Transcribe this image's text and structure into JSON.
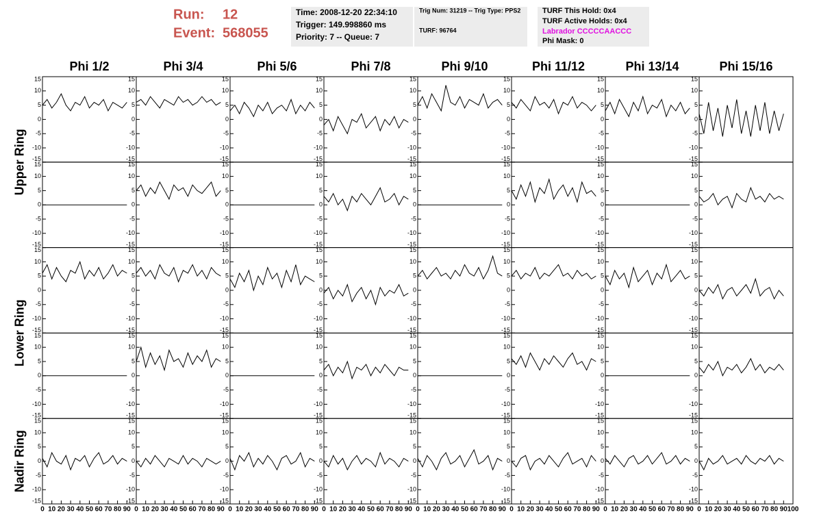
{
  "header": {
    "run_label": "Run:",
    "run": "12",
    "event_label": "Event:",
    "event": "568055",
    "time": "Time: 2008-12-20 22:34:10",
    "trigger": "Trigger: 149.998860 ms",
    "priority": "Priority: 7 -- Queue: 7",
    "trig_num": "Trig Num: 31219 -- Trig Type: PPS2",
    "turf": "TURF: 96764",
    "turf_hold": "TURF This Hold: 0x4",
    "turf_active": "TURF Active Holds: 0x4",
    "labrador": "Labrador CCCCCAACCC",
    "phi_mask": "Phi Mask: 0"
  },
  "chart_data": {
    "type": "line",
    "color": "#000000",
    "columns": [
      "Phi 1/2",
      "Phi 3/4",
      "Phi 5/6",
      "Phi 7/8",
      "Phi 9/10",
      "Phi 11/12",
      "Phi 13/14",
      "Phi 15/16"
    ],
    "rows": [
      "Upper Ring",
      "Lower Ring",
      "Nadir Ring"
    ],
    "xlim": [
      0,
      100
    ],
    "xticks": [
      0,
      10,
      20,
      30,
      40,
      50,
      60,
      70,
      80,
      90,
      100
    ],
    "ylim": [
      -15,
      15
    ],
    "yticks": [
      -15,
      -10,
      -5,
      0,
      5,
      10,
      15
    ],
    "x": [
      0,
      5,
      10,
      15,
      20,
      25,
      30,
      35,
      40,
      45,
      50,
      55,
      60,
      65,
      70,
      75,
      80,
      85,
      90
    ],
    "panels": [
      [
        [
          5,
          7,
          4,
          6,
          9,
          5,
          3,
          6,
          5,
          8,
          4,
          6,
          5,
          7,
          3,
          6,
          5,
          4,
          6
        ],
        [
          6,
          7,
          5,
          8,
          6,
          4,
          7,
          6,
          5,
          8,
          6,
          7,
          5,
          6,
          8,
          6,
          7,
          5,
          6
        ],
        [
          3,
          5,
          2,
          6,
          4,
          1,
          5,
          3,
          6,
          2,
          4,
          5,
          3,
          7,
          2,
          5,
          3,
          6,
          4
        ],
        [
          -2,
          0,
          -4,
          1,
          -2,
          -5,
          0,
          -1,
          2,
          -3,
          -1,
          1,
          -4,
          0,
          -2,
          1,
          -3,
          0,
          -1
        ],
        [
          5,
          8,
          4,
          9,
          6,
          3,
          12,
          6,
          5,
          8,
          4,
          7,
          6,
          5,
          9,
          4,
          6,
          7,
          5
        ],
        [
          6,
          4,
          7,
          5,
          3,
          8,
          5,
          6,
          4,
          7,
          2,
          6,
          5,
          8,
          4,
          6,
          5,
          3,
          5
        ],
        [
          3,
          6,
          2,
          7,
          4,
          1,
          6,
          3,
          8,
          2,
          5,
          4,
          7,
          1,
          5,
          3,
          6,
          2,
          4
        ],
        [
          2,
          -5,
          6,
          -4,
          4,
          -6,
          5,
          -3,
          7,
          -5,
          3,
          -6,
          5,
          -4,
          6,
          -5,
          3,
          -4,
          2
        ]
      ],
      [
        [
          0,
          0,
          0,
          0,
          0,
          0,
          0,
          0,
          0,
          0,
          0,
          0,
          0,
          0,
          0,
          0,
          0,
          0,
          0
        ],
        [
          5,
          7,
          3,
          6,
          4,
          8,
          5,
          2,
          7,
          5,
          6,
          3,
          7,
          5,
          4,
          6,
          8,
          3,
          5
        ],
        [
          0,
          0,
          0,
          0,
          0,
          0,
          0,
          0,
          0,
          0,
          0,
          0,
          0,
          0,
          0,
          0,
          0,
          0,
          0
        ],
        [
          3,
          1,
          4,
          0,
          2,
          -2,
          3,
          1,
          4,
          2,
          0,
          3,
          6,
          1,
          2,
          4,
          0,
          3,
          2
        ],
        [
          0,
          0,
          0,
          0,
          0,
          0,
          0,
          0,
          0,
          0,
          0,
          0,
          0,
          0,
          0,
          0,
          0,
          0,
          0
        ],
        [
          5,
          2,
          7,
          3,
          8,
          1,
          6,
          4,
          9,
          2,
          5,
          7,
          3,
          6,
          1,
          8,
          4,
          5,
          3
        ],
        [
          0,
          0,
          0,
          0,
          0,
          0,
          0,
          0,
          0,
          0,
          0,
          0,
          0,
          0,
          0,
          0,
          0,
          0,
          0
        ],
        [
          3,
          1,
          2,
          4,
          0,
          2,
          3,
          -1,
          4,
          2,
          1,
          6,
          2,
          3,
          1,
          4,
          2,
          3,
          2
        ]
      ],
      [
        [
          6,
          9,
          4,
          8,
          5,
          3,
          7,
          6,
          10,
          4,
          7,
          5,
          8,
          4,
          6,
          9,
          5,
          7,
          6
        ],
        [
          6,
          8,
          5,
          7,
          4,
          9,
          6,
          5,
          8,
          3,
          7,
          6,
          9,
          5,
          7,
          4,
          8,
          6,
          5
        ],
        [
          4,
          1,
          6,
          3,
          7,
          0,
          5,
          2,
          8,
          4,
          6,
          1,
          7,
          3,
          9,
          2,
          5,
          4,
          3
        ],
        [
          -1,
          1,
          -3,
          0,
          -2,
          2,
          -4,
          -1,
          1,
          -3,
          0,
          -5,
          1,
          -2,
          0,
          -1,
          2,
          -2,
          -1
        ],
        [
          5,
          7,
          4,
          6,
          8,
          5,
          6,
          4,
          7,
          5,
          9,
          6,
          5,
          8,
          4,
          7,
          12,
          6,
          5
        ],
        [
          5,
          7,
          4,
          6,
          5,
          8,
          4,
          6,
          5,
          7,
          9,
          5,
          6,
          4,
          7,
          5,
          6,
          4,
          5
        ],
        [
          5,
          2,
          7,
          4,
          6,
          1,
          8,
          3,
          5,
          7,
          2,
          6,
          4,
          9,
          3,
          5,
          7,
          4,
          5
        ],
        [
          0,
          -2,
          1,
          -1,
          2,
          -3,
          0,
          1,
          -2,
          0,
          2,
          -1,
          4,
          -2,
          0,
          1,
          -3,
          0,
          -2
        ]
      ],
      [
        [
          0,
          0,
          0,
          0,
          0,
          0,
          0,
          0,
          0,
          0,
          0,
          0,
          0,
          0,
          0,
          0,
          0,
          0,
          0
        ],
        [
          5,
          10,
          3,
          8,
          4,
          7,
          2,
          9,
          5,
          6,
          3,
          8,
          4,
          7,
          5,
          9,
          3,
          6,
          5
        ],
        [
          0,
          0,
          0,
          0,
          0,
          0,
          0,
          0,
          0,
          0,
          0,
          0,
          0,
          0,
          0,
          0,
          0,
          0,
          0
        ],
        [
          2,
          4,
          0,
          3,
          1,
          5,
          -1,
          3,
          2,
          4,
          0,
          3,
          1,
          4,
          2,
          0,
          3,
          2,
          2
        ],
        [
          0,
          0,
          0,
          0,
          0,
          0,
          0,
          0,
          0,
          0,
          0,
          0,
          0,
          0,
          0,
          0,
          0,
          0,
          0
        ],
        [
          6,
          4,
          7,
          3,
          8,
          5,
          2,
          6,
          4,
          7,
          5,
          3,
          6,
          8,
          4,
          5,
          2,
          6,
          5
        ],
        [
          0,
          0,
          0,
          0,
          0,
          0,
          0,
          0,
          0,
          0,
          0,
          0,
          0,
          0,
          0,
          0,
          0,
          0,
          0
        ],
        [
          3,
          1,
          4,
          2,
          5,
          0,
          3,
          2,
          4,
          1,
          3,
          6,
          2,
          4,
          1,
          3,
          2,
          4,
          2
        ]
      ],
      [
        [
          1,
          -2,
          3,
          0,
          -1,
          2,
          -3,
          1,
          0,
          2,
          -2,
          1,
          3,
          -1,
          0,
          2,
          -1,
          1,
          0
        ],
        [
          0,
          -2,
          1,
          -1,
          2,
          0,
          -2,
          1,
          0,
          -1,
          2,
          -1,
          1,
          0,
          -2,
          1,
          0,
          -1,
          0
        ],
        [
          1,
          -3,
          2,
          0,
          3,
          -2,
          1,
          -1,
          2,
          0,
          -3,
          1,
          2,
          -1,
          0,
          3,
          -2,
          1,
          0
        ],
        [
          0,
          -2,
          2,
          -1,
          1,
          -3,
          0,
          2,
          -1,
          1,
          0,
          -2,
          3,
          -1,
          1,
          0,
          -2,
          1,
          0
        ],
        [
          1,
          -2,
          2,
          0,
          -3,
          1,
          3,
          -1,
          0,
          2,
          -2,
          1,
          4,
          -1,
          0,
          2,
          -3,
          1,
          0
        ],
        [
          0,
          -2,
          1,
          2,
          -3,
          0,
          1,
          -1,
          2,
          0,
          -2,
          1,
          3,
          -1,
          0,
          1,
          -2,
          2,
          0
        ],
        [
          1,
          -1,
          2,
          0,
          -2,
          1,
          2,
          -1,
          0,
          2,
          -1,
          1,
          3,
          -1,
          0,
          2,
          -1,
          1,
          0
        ],
        [
          0,
          -3,
          1,
          -1,
          0,
          2,
          -1,
          0,
          1,
          -1,
          2,
          0,
          -1,
          1,
          0,
          2,
          -1,
          1,
          0
        ]
      ]
    ]
  }
}
